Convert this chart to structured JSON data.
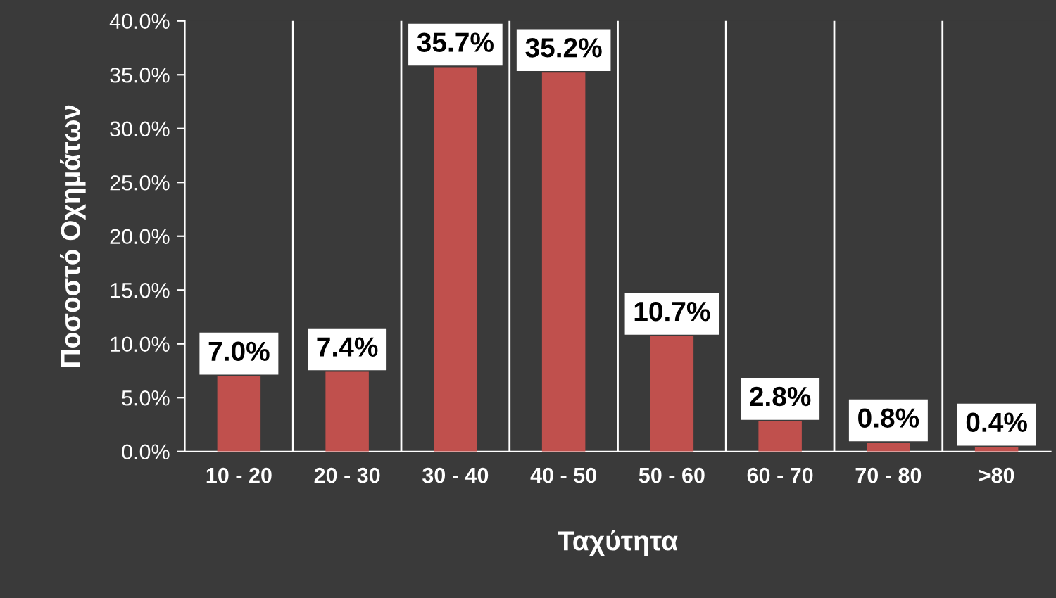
{
  "chart_data": {
    "type": "bar",
    "xlabel": "Ταχύτητα",
    "ylabel": "Ποσοστό Οχημάτων",
    "categories": [
      "10 - 20",
      "20 - 30",
      "30 - 40",
      "40 - 50",
      "50 - 60",
      "60 - 70",
      "70 - 80",
      ">80"
    ],
    "values": [
      7.0,
      7.4,
      35.7,
      35.2,
      10.7,
      2.8,
      0.8,
      0.4
    ],
    "value_labels": [
      "7.0%",
      "7.4%",
      "35.7%",
      "35.2%",
      "10.7%",
      "2.8%",
      "0.8%",
      "0.4%"
    ],
    "color": "#c0504d",
    "ylim": [
      0,
      40
    ],
    "yticks": [
      {
        "value": 0,
        "label": "0.0%"
      },
      {
        "value": 5,
        "label": "5.0%"
      },
      {
        "value": 10,
        "label": "10.0%"
      },
      {
        "value": 15,
        "label": "15.0%"
      },
      {
        "value": 20,
        "label": "20.0%"
      },
      {
        "value": 25,
        "label": "25.0%"
      },
      {
        "value": 30,
        "label": "30.0%"
      },
      {
        "value": 35,
        "label": "35.0%"
      },
      {
        "value": 40,
        "label": "40.0%"
      }
    ],
    "grid": "x",
    "legend": false
  }
}
